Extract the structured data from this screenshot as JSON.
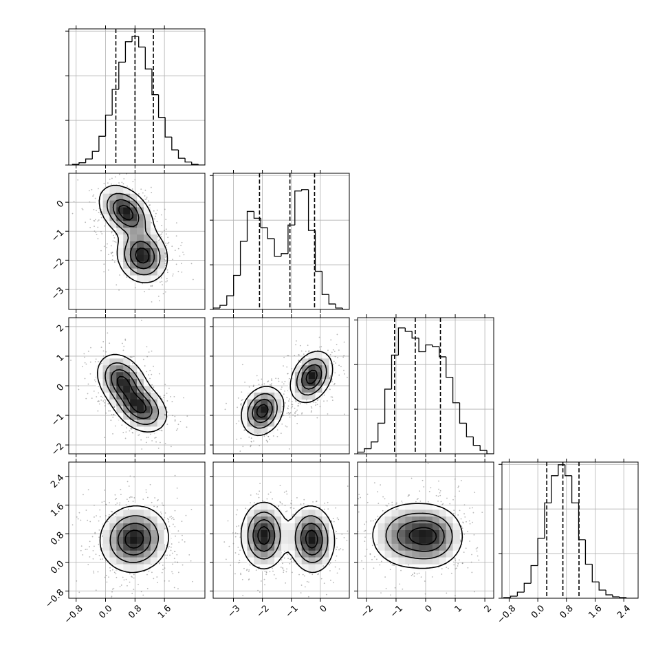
{
  "chart_data": {
    "type": "corner",
    "title": "",
    "parameters": [
      {
        "range": [
          -1.0,
          2.7
        ],
        "tick_labels": [
          "−0.8",
          "0.0",
          "0.8",
          "1.6"
        ],
        "tick_values": [
          -0.8,
          0.0,
          0.8,
          1.6
        ],
        "quantiles": [
          0.28,
          0.8,
          1.3
        ],
        "hist": {
          "edges_start": -0.9,
          "bin_width": 0.18,
          "counts": [
            1,
            3,
            8,
            18,
            38,
            66,
            100,
            136,
            163,
            170,
            156,
            127,
            93,
            63,
            37,
            20,
            9,
            4,
            1,
            0
          ],
          "max_display": 180
        }
      },
      {
        "range": [
          -3.7,
          1.0
        ],
        "tick_labels": [
          "−3",
          "−2",
          "−1",
          "0"
        ],
        "tick_values": [
          -3,
          -2,
          -1,
          0
        ],
        "quantiles": [
          -2.1,
          -1.05,
          -0.2
        ],
        "hist": {
          "edges_start": -3.7,
          "bin_width": 0.235,
          "counts": [
            1,
            3,
            10,
            25,
            50,
            72,
            67,
            60,
            52,
            39,
            41,
            62,
            87,
            88,
            58,
            28,
            11,
            4,
            1,
            0
          ],
          "max_display": 100
        }
      },
      {
        "range": [
          -2.3,
          2.3
        ],
        "tick_labels": [
          "−2",
          "−1",
          "0",
          "1",
          "2"
        ],
        "tick_values": [
          -2,
          -1,
          0,
          1,
          2
        ],
        "quantiles": [
          -1.05,
          -0.35,
          0.5
        ],
        "hist": {
          "edges_start": -2.3,
          "bin_width": 0.23,
          "counts": [
            1,
            3,
            7,
            18,
            38,
            58,
            74,
            72,
            68,
            60,
            64,
            63,
            57,
            45,
            30,
            18,
            10,
            5,
            2,
            0
          ],
          "max_display": 80
        }
      },
      {
        "range": [
          -1.0,
          2.8
        ],
        "tick_labels": [
          "−0.8",
          "0.0",
          "0.8",
          "1.6",
          "2.4"
        ],
        "tick_values": [
          -0.8,
          0.0,
          0.8,
          1.6,
          2.4
        ],
        "quantiles": [
          0.25,
          0.7,
          1.15
        ],
        "hist": {
          "edges_start": -0.95,
          "bin_width": 0.19,
          "counts": [
            1,
            3,
            9,
            22,
            48,
            88,
            140,
            180,
            196,
            180,
            140,
            86,
            50,
            24,
            12,
            5,
            2,
            1,
            0,
            0
          ],
          "max_display": 200
        }
      }
    ],
    "pair_panels": [
      {
        "row": 1,
        "col": 0,
        "modes": [
          {
            "mx": 0.55,
            "my": -0.35,
            "sx": 0.35,
            "sy": 0.45,
            "rho": -0.4,
            "w": 0.5
          },
          {
            "mx": 1.0,
            "my": -1.85,
            "sx": 0.33,
            "sy": 0.45,
            "rho": -0.1,
            "w": 0.5
          }
        ]
      },
      {
        "row": 2,
        "col": 0,
        "modes": [
          {
            "mx": 0.45,
            "my": 0.15,
            "sx": 0.33,
            "sy": 0.45,
            "rho": -0.3,
            "w": 0.5
          },
          {
            "mx": 0.95,
            "my": -0.75,
            "sx": 0.35,
            "sy": 0.4,
            "rho": -0.3,
            "w": 0.5
          }
        ]
      },
      {
        "row": 2,
        "col": 1,
        "modes": [
          {
            "mx": -2.0,
            "my": -0.85,
            "sx": 0.35,
            "sy": 0.4,
            "rho": 0.2,
            "w": 0.5
          },
          {
            "mx": -0.3,
            "my": 0.3,
            "sx": 0.35,
            "sy": 0.42,
            "rho": 0.3,
            "w": 0.5
          }
        ]
      },
      {
        "row": 3,
        "col": 0,
        "modes": [
          {
            "mx": 0.78,
            "my": 0.65,
            "sx": 0.45,
            "sy": 0.45,
            "rho": 0.05,
            "w": 1.0
          }
        ]
      },
      {
        "row": 3,
        "col": 1,
        "modes": [
          {
            "mx": -1.95,
            "my": 0.75,
            "sx": 0.38,
            "sy": 0.45,
            "rho": 0.0,
            "w": 0.5
          },
          {
            "mx": -0.3,
            "my": 0.65,
            "sx": 0.38,
            "sy": 0.45,
            "rho": -0.05,
            "w": 0.5
          }
        ]
      },
      {
        "row": 3,
        "col": 2,
        "modes": [
          {
            "mx": -0.55,
            "my": 0.75,
            "sx": 0.65,
            "sy": 0.45,
            "rho": 0.0,
            "w": 0.55
          },
          {
            "mx": 0.3,
            "my": 0.72,
            "sx": 0.5,
            "sy": 0.42,
            "rho": 0.0,
            "w": 0.45
          }
        ]
      }
    ],
    "contour_levels": [
      0.12,
      0.35,
      0.62,
      0.86
    ],
    "grid": true,
    "quantile_line_style": "dashed",
    "colors": {
      "axes": "#000000",
      "grid": "#b0b0b0",
      "density": "#000000",
      "points": "#7a7a7a"
    }
  }
}
